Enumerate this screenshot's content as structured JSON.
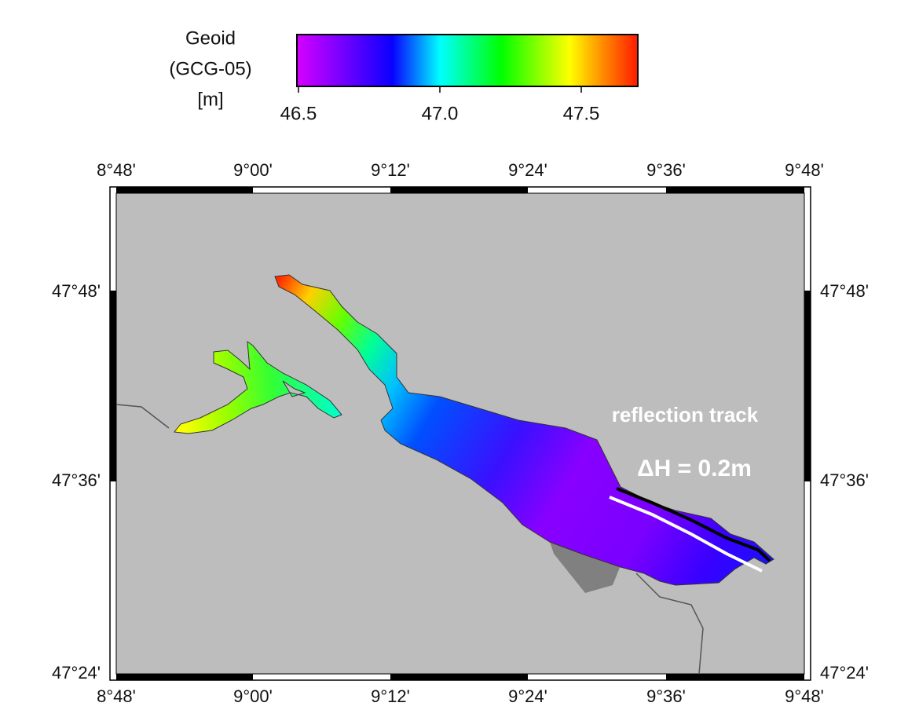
{
  "colorbar": {
    "label": [
      "Geoid",
      "(GCG-05)",
      "[m]"
    ],
    "range": [
      46.5,
      47.7
    ],
    "ticks": [
      46.5,
      {
        "value": 47,
        "label": "47.0"
      },
      47.5
    ]
  },
  "map": {
    "x_labels": [
      "8°48'",
      "9°00'",
      "9°12'",
      "9°24'",
      "9°36'",
      "9°48'"
    ],
    "y_labels": [
      "47°48'",
      "47°36'",
      "47°24'"
    ],
    "annotations": [
      "reflection track",
      "ΔH = 0.2m"
    ]
  }
}
